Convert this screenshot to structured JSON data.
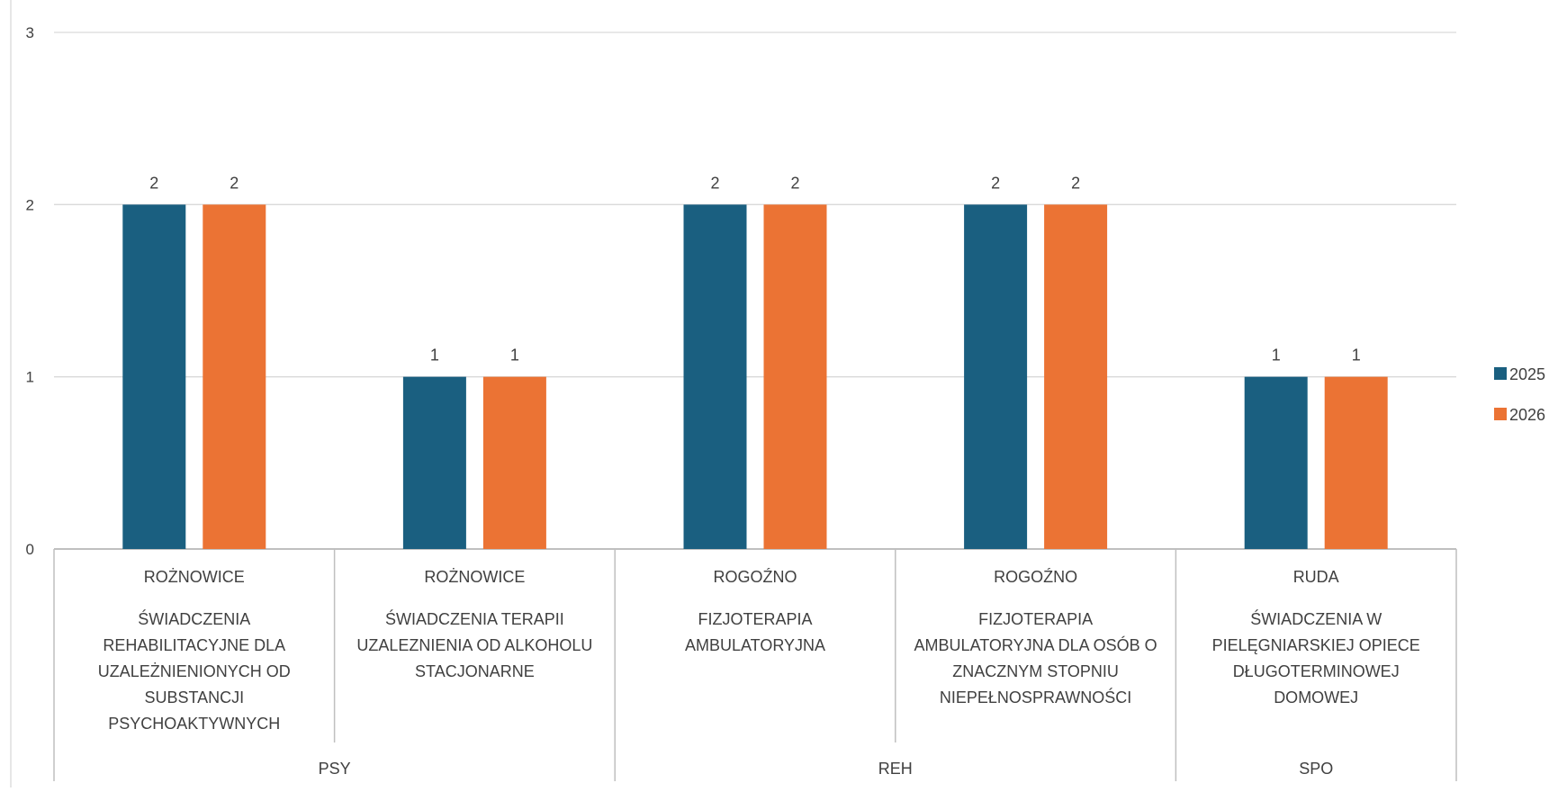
{
  "chart_data": {
    "type": "bar",
    "title": "",
    "ylim": [
      0,
      3
    ],
    "yticks": [
      "0",
      "1",
      "2",
      "3"
    ],
    "grid": true,
    "legend_position": "right",
    "categories": [
      {
        "place": "ROŻNOWICE",
        "service": [
          "ŚWIADCZENIA",
          "REHABILITACYJNE DLA",
          "UZALEŻNIENIONYCH OD",
          "SUBSTANCJI",
          "PSYCHOAKTYWNYCH"
        ]
      },
      {
        "place": "ROŻNOWICE",
        "service": [
          "ŚWIADCZENIA TERAPII",
          "UZALEZNIENIA OD ALKOHOLU",
          "STACJONARNE"
        ]
      },
      {
        "place": "ROGOŹNO",
        "service": [
          "FIZJOTERAPIA",
          "AMBULATORYJNA"
        ]
      },
      {
        "place": "ROGOŹNO",
        "service": [
          "FIZJOTERAPIA",
          "AMBULATORYJNA DLA OSÓB O",
          "ZNACZNYM STOPNIU",
          "NIEPEŁNOSPRAWNOŚCI"
        ]
      },
      {
        "place": "RUDA",
        "service": [
          "ŚWIADCZENIA W",
          "PIELĘGNIARSKIEJ OPIECE",
          "DŁUGOTERMINOWEJ",
          "DOMOWEJ"
        ]
      }
    ],
    "groups": [
      {
        "label": "PSY",
        "span": 2
      },
      {
        "label": "REH",
        "span": 2
      },
      {
        "label": "SPO",
        "span": 1
      }
    ],
    "series": [
      {
        "name": "2025",
        "color": "#1a5f80",
        "values": [
          2,
          1,
          2,
          2,
          1
        ]
      },
      {
        "name": "2026",
        "color": "#eb7334",
        "values": [
          2,
          1,
          2,
          2,
          1
        ]
      }
    ]
  }
}
